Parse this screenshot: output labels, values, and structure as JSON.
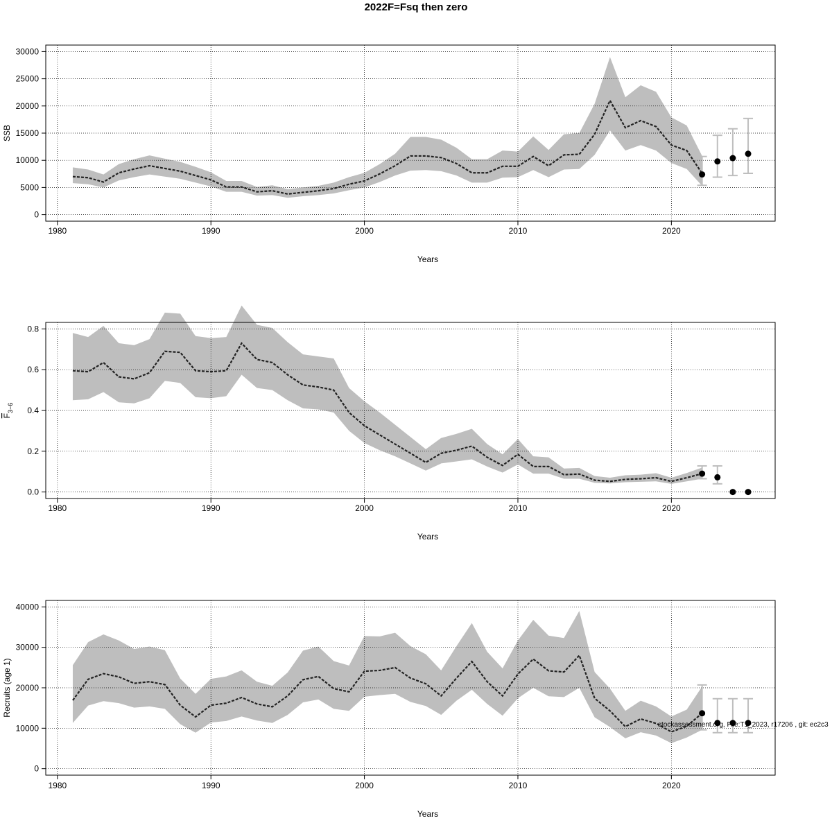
{
  "title": "2022F=Fsq then zero",
  "footer_text": "stockassessment.org, File:T1_2023, r17206 , git: ec2c3",
  "colors": {
    "band": "#bebebe",
    "line": "#222222",
    "grid": "#000000",
    "errorbar": "#bebebe",
    "point": "#000000"
  },
  "chart_data": [
    {
      "type": "line",
      "title": "",
      "xlabel": "Years",
      "ylabel": "SSB",
      "xlim": [
        1980,
        2026
      ],
      "ylim": [
        0,
        30000
      ],
      "xticks": [
        1980,
        1990,
        2000,
        2010,
        2020
      ],
      "yticks": [
        0,
        5000,
        10000,
        15000,
        20000,
        25000,
        30000
      ],
      "grid": true,
      "series": [
        {
          "role": "estimate",
          "x": [
            1981,
            1982,
            1983,
            1984,
            1985,
            1986,
            1987,
            1988,
            1989,
            1990,
            1991,
            1992,
            1993,
            1994,
            1995,
            1996,
            1997,
            1998,
            1999,
            2000,
            2001,
            2002,
            2003,
            2004,
            2005,
            2006,
            2007,
            2008,
            2009,
            2010,
            2011,
            2012,
            2013,
            2014,
            2015,
            2016,
            2017,
            2018,
            2019,
            2020,
            2021,
            2022
          ],
          "values": [
            7000,
            6800,
            6000,
            7700,
            8400,
            9000,
            8500,
            8000,
            7200,
            6400,
            5100,
            5100,
            4200,
            4400,
            3800,
            4100,
            4400,
            4800,
            5600,
            6200,
            7500,
            9000,
            10800,
            10800,
            10500,
            9400,
            7700,
            7700,
            8900,
            8900,
            10700,
            9000,
            11000,
            11100,
            14800,
            21000,
            16000,
            17300,
            16200,
            12800,
            11800,
            7600
          ],
          "lower": [
            5800,
            5600,
            5000,
            6300,
            6900,
            7400,
            7000,
            6600,
            5900,
            5200,
            4200,
            4200,
            3500,
            3600,
            3100,
            3400,
            3600,
            3900,
            4500,
            5000,
            6000,
            7200,
            8100,
            8200,
            8000,
            7200,
            5900,
            5900,
            6800,
            6900,
            8200,
            6900,
            8300,
            8400,
            11000,
            15500,
            11800,
            12800,
            11800,
            9500,
            8400,
            5300
          ],
          "upper": [
            8700,
            8300,
            7400,
            9300,
            10200,
            10900,
            10300,
            9700,
            8800,
            7800,
            6200,
            6200,
            5100,
            5400,
            4700,
            5000,
            5300,
            5900,
            6900,
            7700,
            9300,
            11200,
            14300,
            14300,
            13800,
            12300,
            10200,
            10200,
            11800,
            11600,
            14400,
            11900,
            14800,
            15000,
            20400,
            29000,
            21600,
            23800,
            22600,
            17900,
            16400,
            10800
          ]
        }
      ],
      "forecast": {
        "x": [
          2022,
          2023,
          2024,
          2025
        ],
        "values": [
          7400,
          9800,
          10400,
          11200
        ],
        "lower": [
          5400,
          6900,
          7200,
          7600
        ],
        "upper": [
          10700,
          14600,
          15800,
          17700
        ]
      }
    },
    {
      "type": "line",
      "title": "",
      "xlabel": "Years",
      "ylabel": "F3-6",
      "ylabel_main": "F",
      "ylabel_sub": "3−6",
      "xlim": [
        1980,
        2026
      ],
      "ylim": [
        0,
        0.8
      ],
      "xticks": [
        1980,
        1990,
        2000,
        2010,
        2020
      ],
      "yticks": [
        0.0,
        0.2,
        0.4,
        0.6,
        0.8
      ],
      "ytick_labels": [
        "0.0",
        "0.2",
        "0.4",
        "0.6",
        "0.8"
      ],
      "grid": true,
      "series": [
        {
          "role": "estimate",
          "x": [
            1981,
            1982,
            1983,
            1984,
            1985,
            1986,
            1987,
            1988,
            1989,
            1990,
            1991,
            1992,
            1993,
            1994,
            1995,
            1996,
            1997,
            1998,
            1999,
            2000,
            2001,
            2002,
            2003,
            2004,
            2005,
            2006,
            2007,
            2008,
            2009,
            2010,
            2011,
            2012,
            2013,
            2014,
            2015,
            2016,
            2017,
            2018,
            2019,
            2020,
            2021,
            2022
          ],
          "values": [
            0.595,
            0.59,
            0.635,
            0.565,
            0.555,
            0.585,
            0.69,
            0.685,
            0.595,
            0.59,
            0.595,
            0.73,
            0.65,
            0.635,
            0.575,
            0.525,
            0.515,
            0.5,
            0.39,
            0.325,
            0.28,
            0.235,
            0.19,
            0.145,
            0.19,
            0.205,
            0.225,
            0.17,
            0.13,
            0.185,
            0.125,
            0.125,
            0.085,
            0.088,
            0.058,
            0.052,
            0.062,
            0.065,
            0.07,
            0.052,
            0.07,
            0.09
          ],
          "lower": [
            0.45,
            0.455,
            0.49,
            0.44,
            0.435,
            0.46,
            0.545,
            0.535,
            0.465,
            0.46,
            0.47,
            0.575,
            0.51,
            0.5,
            0.45,
            0.41,
            0.405,
            0.39,
            0.3,
            0.24,
            0.205,
            0.175,
            0.14,
            0.105,
            0.14,
            0.15,
            0.16,
            0.125,
            0.095,
            0.135,
            0.09,
            0.09,
            0.065,
            0.065,
            0.045,
            0.042,
            0.048,
            0.05,
            0.052,
            0.04,
            0.052,
            0.065
          ],
          "upper": [
            0.78,
            0.76,
            0.815,
            0.73,
            0.72,
            0.75,
            0.88,
            0.875,
            0.765,
            0.755,
            0.76,
            0.915,
            0.82,
            0.805,
            0.735,
            0.675,
            0.665,
            0.655,
            0.51,
            0.445,
            0.39,
            0.33,
            0.27,
            0.21,
            0.265,
            0.285,
            0.31,
            0.235,
            0.185,
            0.26,
            0.175,
            0.17,
            0.115,
            0.118,
            0.078,
            0.07,
            0.082,
            0.085,
            0.092,
            0.07,
            0.093,
            0.12
          ]
        }
      ],
      "forecast": {
        "x": [
          2022,
          2023,
          2024,
          2025
        ],
        "values": [
          0.09,
          0.072,
          0.0,
          0.0
        ],
        "lower": [
          0.065,
          0.04,
          0.0,
          0.0
        ],
        "upper": [
          0.128,
          0.128,
          0.0,
          0.0
        ]
      }
    },
    {
      "type": "line",
      "title": "",
      "xlabel": "Years",
      "ylabel": "Recruits (age 1)",
      "xlim": [
        1980,
        2026
      ],
      "ylim": [
        0,
        40000
      ],
      "xticks": [
        1980,
        1990,
        2000,
        2010,
        2020
      ],
      "yticks": [
        0,
        10000,
        20000,
        30000,
        40000
      ],
      "grid": true,
      "series": [
        {
          "role": "estimate",
          "x": [
            1981,
            1982,
            1983,
            1984,
            1985,
            1986,
            1987,
            1988,
            1989,
            1990,
            1991,
            1992,
            1993,
            1994,
            1995,
            1996,
            1997,
            1998,
            1999,
            2000,
            2001,
            2002,
            2003,
            2004,
            2005,
            2006,
            2007,
            2008,
            2009,
            2010,
            2011,
            2012,
            2013,
            2014,
            2015,
            2016,
            2017,
            2018,
            2019,
            2020,
            2021,
            2022
          ],
          "values": [
            16900,
            22100,
            23500,
            22700,
            21100,
            21500,
            20800,
            15700,
            12800,
            15700,
            16200,
            17600,
            16000,
            15300,
            18000,
            22000,
            22800,
            19800,
            19000,
            24100,
            24300,
            25000,
            22400,
            21000,
            18000,
            22400,
            26500,
            21500,
            18000,
            23400,
            27100,
            24200,
            23900,
            28000,
            17400,
            14300,
            10400,
            12300,
            11200,
            9100,
            10500,
            13700
          ],
          "lower": [
            11300,
            15600,
            16700,
            16200,
            15100,
            15400,
            14800,
            11000,
            8900,
            11400,
            11800,
            12900,
            11900,
            11300,
            13300,
            16400,
            17100,
            14800,
            14300,
            17800,
            18200,
            18500,
            16500,
            15500,
            13300,
            16800,
            19500,
            16000,
            13100,
            17400,
            20000,
            17900,
            17700,
            20000,
            12700,
            10300,
            7500,
            9000,
            8200,
            6300,
            7700,
            9600
          ],
          "upper": [
            25600,
            31300,
            33200,
            31700,
            29600,
            30200,
            29300,
            22300,
            18500,
            22200,
            22800,
            24300,
            21500,
            20500,
            23800,
            29200,
            30200,
            26600,
            25500,
            32800,
            32700,
            33600,
            30300,
            28300,
            24300,
            30300,
            36000,
            28900,
            24800,
            31700,
            36800,
            32900,
            32300,
            39000,
            23900,
            19800,
            14300,
            16800,
            15400,
            12900,
            14600,
            20300
          ]
        }
      ],
      "forecast": {
        "x": [
          2022,
          2023,
          2024,
          2025
        ],
        "values": [
          13700,
          11300,
          11300,
          11300
        ],
        "lower": [
          9600,
          8900,
          8900,
          8900
        ],
        "upper": [
          20700,
          17300,
          17300,
          17300
        ]
      }
    }
  ]
}
